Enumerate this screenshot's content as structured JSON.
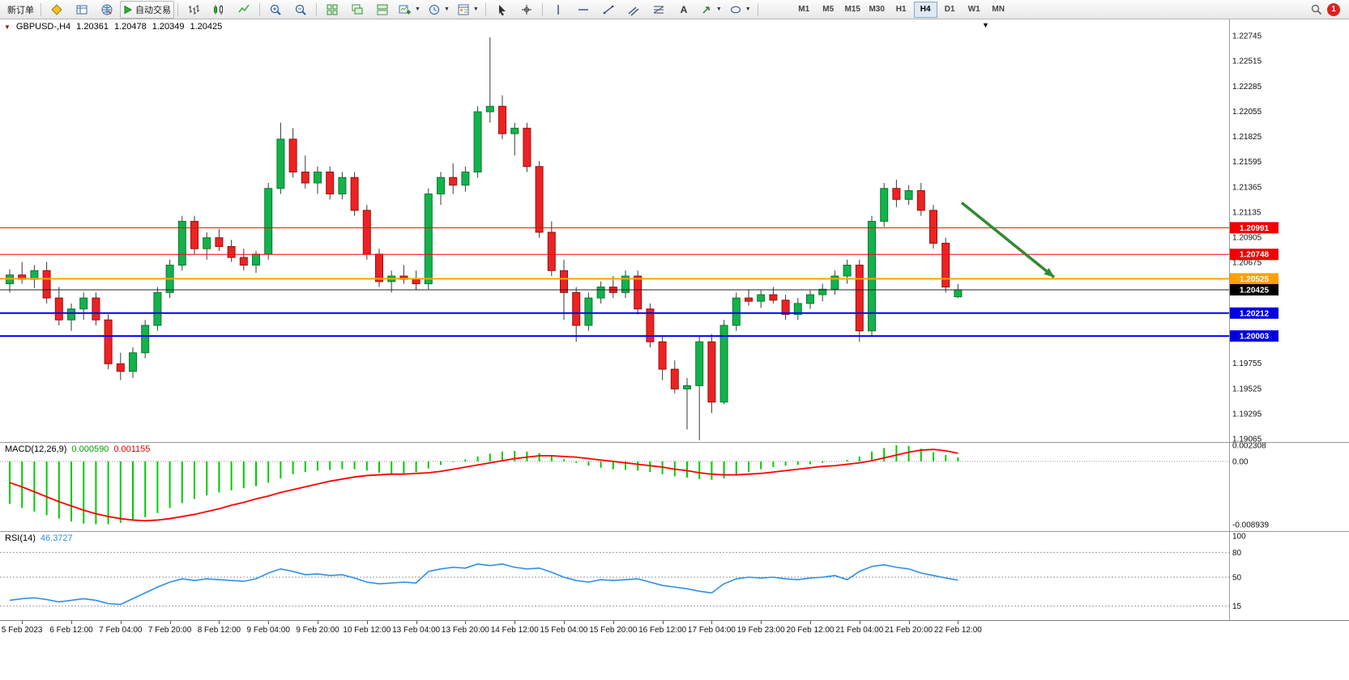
{
  "toolbar": {
    "new_order_label": "新订单",
    "autotrading_label": "自动交易",
    "timeframes": [
      "M1",
      "M5",
      "M15",
      "M30",
      "H1",
      "H4",
      "D1",
      "W1",
      "MN"
    ],
    "active_timeframe": "H4",
    "notification_count": "1"
  },
  "chart": {
    "title": "GBPUSD-,H4",
    "ohlc": {
      "open": "1.20361",
      "high": "1.20478",
      "low": "1.20349",
      "close": "1.20425"
    }
  },
  "chart_data": [
    {
      "type": "candlestick",
      "symbol": "GBPUSD-",
      "timeframe": "H4",
      "colors": {
        "up": "#13b24b",
        "up_border": "#0a7a33",
        "down": "#ee2222",
        "down_border": "#991111",
        "wick": "#3a3a3a"
      },
      "y_axis": {
        "max": 1.22745,
        "min": 1.19065,
        "step": 0.0023
      },
      "y_ticks": [
        "1.22745",
        "1.22515",
        "1.22285",
        "1.22055",
        "1.21825",
        "1.21595",
        "1.21365",
        "1.21135",
        "1.20905",
        "1.20675",
        "1.20445",
        "1.20215",
        "1.19985",
        "1.19755",
        "1.19525",
        "1.19295",
        "1.19065"
      ],
      "x_labels": [
        "5 Feb 2023",
        "6 Feb 12:00",
        "7 Feb 04:00",
        "7 Feb 20:00",
        "8 Feb 12:00",
        "9 Feb 04:00",
        "9 Feb 20:00",
        "10 Feb 12:00",
        "13 Feb 04:00",
        "13 Feb 20:00",
        "14 Feb 12:00",
        "15 Feb 04:00",
        "15 Feb 20:00",
        "16 Feb 12:00",
        "17 Feb 04:00",
        "19 Feb 23:00",
        "20 Feb 12:00",
        "21 Feb 04:00",
        "21 Feb 20:00",
        "22 Feb 12:00"
      ],
      "hlines": [
        {
          "price": 1.20991,
          "color": "#ff0000",
          "width": 1,
          "label": "1.20991",
          "badge_bg": "#f00000"
        },
        {
          "price": 1.20748,
          "color": "#ff0000",
          "width": 1,
          "label": "1.20748",
          "badge_bg": "#f00000"
        },
        {
          "price": 1.20525,
          "color": "#ffa500",
          "width": 2,
          "label": "1.20525",
          "badge_bg": "#ff9f00"
        },
        {
          "price": 1.20425,
          "color": "#202020",
          "width": 1,
          "label": "1.20425",
          "badge_bg": "#000000"
        },
        {
          "price": 1.20212,
          "color": "#0000ff",
          "width": 2,
          "label": "1.20212",
          "badge_bg": "#0000e0"
        },
        {
          "price": 1.20003,
          "color": "#0000ff",
          "width": 2,
          "label": "1.20003",
          "badge_bg": "#0000e0"
        }
      ],
      "arrow": {
        "from": {
          "index": 77.3,
          "price": 1.2122
        },
        "to": {
          "index": 84.8,
          "price": 1.2054
        },
        "color": "#338833"
      },
      "candles": [
        [
          1.2048,
          1.2061,
          1.204,
          1.2056
        ],
        [
          1.2056,
          1.2068,
          1.2048,
          1.2052
        ],
        [
          1.2052,
          1.2065,
          1.2044,
          1.206
        ],
        [
          1.206,
          1.2068,
          1.203,
          1.2035
        ],
        [
          1.2035,
          1.2045,
          1.201,
          1.2015
        ],
        [
          1.2015,
          1.203,
          1.2005,
          1.2025
        ],
        [
          1.2025,
          1.204,
          1.2015,
          1.2035
        ],
        [
          1.2035,
          1.204,
          1.201,
          1.2015
        ],
        [
          1.2015,
          1.202,
          1.197,
          1.1975
        ],
        [
          1.1975,
          1.1985,
          1.196,
          1.1968
        ],
        [
          1.1968,
          1.199,
          1.1962,
          1.1985
        ],
        [
          1.1985,
          1.2015,
          1.198,
          1.201
        ],
        [
          1.201,
          1.2045,
          1.2005,
          1.204
        ],
        [
          1.204,
          1.207,
          1.2035,
          1.2065
        ],
        [
          1.2065,
          1.211,
          1.206,
          1.2105
        ],
        [
          1.2105,
          1.211,
          1.2075,
          1.208
        ],
        [
          1.208,
          1.2095,
          1.207,
          1.209
        ],
        [
          1.209,
          1.2098,
          1.2078,
          1.2082
        ],
        [
          1.2082,
          1.2088,
          1.2068,
          1.2072
        ],
        [
          1.2072,
          1.208,
          1.206,
          1.2065
        ],
        [
          1.2065,
          1.2078,
          1.2058,
          1.2075
        ],
        [
          1.2075,
          1.214,
          1.207,
          1.2135
        ],
        [
          1.2135,
          1.2195,
          1.213,
          1.218
        ],
        [
          1.218,
          1.219,
          1.2145,
          1.215
        ],
        [
          1.215,
          1.2165,
          1.2135,
          1.214
        ],
        [
          1.214,
          1.2155,
          1.213,
          1.215
        ],
        [
          1.215,
          1.2155,
          1.2125,
          1.213
        ],
        [
          1.213,
          1.215,
          1.2125,
          1.2145
        ],
        [
          1.2145,
          1.215,
          1.211,
          1.2115
        ],
        [
          1.2115,
          1.212,
          1.207,
          1.2075
        ],
        [
          1.2075,
          1.208,
          1.2045,
          1.205
        ],
        [
          1.205,
          1.206,
          1.204,
          1.2055
        ],
        [
          1.2055,
          1.2065,
          1.2048,
          1.2052
        ],
        [
          1.2052,
          1.206,
          1.2042,
          1.2048
        ],
        [
          1.2048,
          1.2135,
          1.2043,
          1.213
        ],
        [
          1.213,
          1.215,
          1.212,
          1.2145
        ],
        [
          1.2145,
          1.2158,
          1.213,
          1.2138
        ],
        [
          1.2138,
          1.2155,
          1.2132,
          1.215
        ],
        [
          1.215,
          1.221,
          1.2145,
          1.2205
        ],
        [
          1.2205,
          1.2273,
          1.2195,
          1.221
        ],
        [
          1.221,
          1.222,
          1.218,
          1.2185
        ],
        [
          1.2185,
          1.2195,
          1.2165,
          1.219
        ],
        [
          1.219,
          1.2195,
          1.215,
          1.2155
        ],
        [
          1.2155,
          1.216,
          1.209,
          1.2095
        ],
        [
          1.2095,
          1.2105,
          1.2055,
          1.206
        ],
        [
          1.206,
          1.207,
          1.2015,
          1.204
        ],
        [
          1.204,
          1.2045,
          1.1995,
          1.201
        ],
        [
          1.201,
          1.204,
          1.2005,
          1.2035
        ],
        [
          1.2035,
          1.205,
          1.203,
          1.2045
        ],
        [
          1.2045,
          1.2055,
          1.2035,
          1.204
        ],
        [
          1.204,
          1.206,
          1.2035,
          1.2055
        ],
        [
          1.2055,
          1.206,
          1.202,
          1.2025
        ],
        [
          1.2025,
          1.203,
          1.199,
          1.1995
        ],
        [
          1.1995,
          1.2,
          1.196,
          1.197
        ],
        [
          1.197,
          1.1978,
          1.1948,
          1.1952
        ],
        [
          1.1952,
          1.1962,
          1.1915,
          1.1955
        ],
        [
          1.1955,
          1.2,
          1.1905,
          1.1995
        ],
        [
          1.1995,
          1.2002,
          1.193,
          1.194
        ],
        [
          1.194,
          1.2015,
          1.1938,
          1.201
        ],
        [
          1.201,
          1.204,
          1.2005,
          1.2035
        ],
        [
          1.2035,
          1.2043,
          1.2028,
          1.2032
        ],
        [
          1.2032,
          1.2042,
          1.2026,
          1.2038
        ],
        [
          1.2038,
          1.2045,
          1.203,
          1.2033
        ],
        [
          1.2033,
          1.2038,
          1.2015,
          1.202
        ],
        [
          1.202,
          1.2035,
          1.2015,
          1.203
        ],
        [
          1.203,
          1.2042,
          1.2025,
          1.2038
        ],
        [
          1.2038,
          1.2048,
          1.2032,
          1.2043
        ],
        [
          1.2043,
          1.206,
          1.2038,
          1.2055
        ],
        [
          1.2055,
          1.207,
          1.2048,
          1.2065
        ],
        [
          1.2065,
          1.207,
          1.1995,
          1.2005
        ],
        [
          1.2005,
          1.211,
          1.2,
          1.2105
        ],
        [
          1.2105,
          1.214,
          1.21,
          1.2135
        ],
        [
          1.2135,
          1.2143,
          1.2118,
          1.2125
        ],
        [
          1.2125,
          1.2138,
          1.212,
          1.2133
        ],
        [
          1.2133,
          1.214,
          1.211,
          1.2115
        ],
        [
          1.2115,
          1.212,
          1.208,
          1.2085
        ],
        [
          1.2085,
          1.209,
          1.204,
          1.2045
        ],
        [
          1.20361,
          1.20478,
          1.20349,
          1.20425
        ]
      ]
    },
    {
      "type": "bar",
      "label": "MACD(12,26,9)",
      "value_macd": "0.000590",
      "value_signal": "0.001155",
      "colors": {
        "histogram": "#00cc00",
        "signal": "#ff0000"
      },
      "y_ticks": [
        {
          "v": 0.002308,
          "label": "0.002308"
        },
        {
          "v": 0,
          "label": "0.00"
        },
        {
          "v": -0.008939,
          "label": "-0.008939"
        }
      ],
      "histogram": [
        -0.006,
        -0.0066,
        -0.0071,
        -0.0076,
        -0.0081,
        -0.0085,
        -0.0088,
        -0.0089,
        -0.0089,
        -0.0087,
        -0.0084,
        -0.0079,
        -0.0073,
        -0.0066,
        -0.0059,
        -0.0053,
        -0.0048,
        -0.0044,
        -0.0041,
        -0.0038,
        -0.0035,
        -0.003,
        -0.0024,
        -0.0018,
        -0.0015,
        -0.0013,
        -0.0012,
        -0.0011,
        -0.0011,
        -0.0013,
        -0.0016,
        -0.0018,
        -0.0017,
        -0.0015,
        -0.001,
        -0.0005,
        -0.0001,
        0.0003,
        0.0007,
        0.0011,
        0.0014,
        0.0015,
        0.0014,
        0.0012,
        0.0008,
        0.0003,
        -0.0002,
        -0.0006,
        -0.0009,
        -0.0011,
        -0.0012,
        -0.0013,
        -0.0015,
        -0.0018,
        -0.0021,
        -0.0023,
        -0.0025,
        -0.0026,
        -0.0024,
        -0.002,
        -0.0015,
        -0.0011,
        -0.0008,
        -0.0006,
        -0.0005,
        -0.0004,
        -0.0002,
        0.0,
        0.0002,
        0.0007,
        0.0014,
        0.0019,
        0.0023,
        0.0022,
        0.0018,
        0.0013,
        0.0009,
        0.00059
      ],
      "signal": [
        -0.003,
        -0.0036,
        -0.0043,
        -0.005,
        -0.0057,
        -0.0063,
        -0.0069,
        -0.0074,
        -0.0078,
        -0.0081,
        -0.0083,
        -0.0084,
        -0.0083,
        -0.0081,
        -0.0078,
        -0.0075,
        -0.0071,
        -0.0067,
        -0.0062,
        -0.0058,
        -0.0053,
        -0.0049,
        -0.0044,
        -0.004,
        -0.0036,
        -0.0032,
        -0.0028,
        -0.0025,
        -0.0022,
        -0.002,
        -0.0019,
        -0.0018,
        -0.0018,
        -0.0017,
        -0.0016,
        -0.0014,
        -0.0011,
        -0.0008,
        -0.0005,
        -0.0002,
        0.0001,
        0.0004,
        0.0006,
        0.0008,
        0.0008,
        0.0007,
        0.0006,
        0.0004,
        0.0002,
        0.0,
        -0.0002,
        -0.0004,
        -0.0006,
        -0.0008,
        -0.0011,
        -0.0013,
        -0.0016,
        -0.0018,
        -0.0019,
        -0.0019,
        -0.0018,
        -0.0017,
        -0.0015,
        -0.0013,
        -0.0011,
        -0.0009,
        -0.0007,
        -0.0006,
        -0.0004,
        -0.0002,
        0.0001,
        0.0005,
        0.0009,
        0.0013,
        0.0016,
        0.0017,
        0.0015,
        0.001155
      ]
    },
    {
      "type": "line",
      "label": "RSI(14)",
      "value": "46.3727",
      "colors": {
        "line": "#2e8fe8"
      },
      "levels": [
        80,
        50,
        15
      ],
      "y_ticks": [
        {
          "v": 100,
          "label": "100"
        },
        {
          "v": 80,
          "label": "80"
        },
        {
          "v": 50,
          "label": "50"
        },
        {
          "v": 15,
          "label": "15"
        }
      ],
      "values": [
        22,
        24,
        25,
        23,
        20,
        22,
        24,
        22,
        18,
        17,
        24,
        31,
        38,
        44,
        48,
        46,
        48,
        47,
        46,
        45,
        48,
        55,
        60,
        57,
        53,
        54,
        52,
        53,
        49,
        44,
        42,
        43,
        44,
        43,
        57,
        60,
        62,
        61,
        66,
        64,
        66,
        62,
        60,
        61,
        56,
        50,
        46,
        44,
        47,
        46,
        47,
        48,
        44,
        40,
        38,
        36,
        33,
        31,
        42,
        48,
        50,
        49,
        50,
        48,
        47,
        49,
        50,
        52,
        47,
        57,
        63,
        65,
        62,
        60,
        55,
        52,
        49,
        46.37
      ]
    }
  ]
}
